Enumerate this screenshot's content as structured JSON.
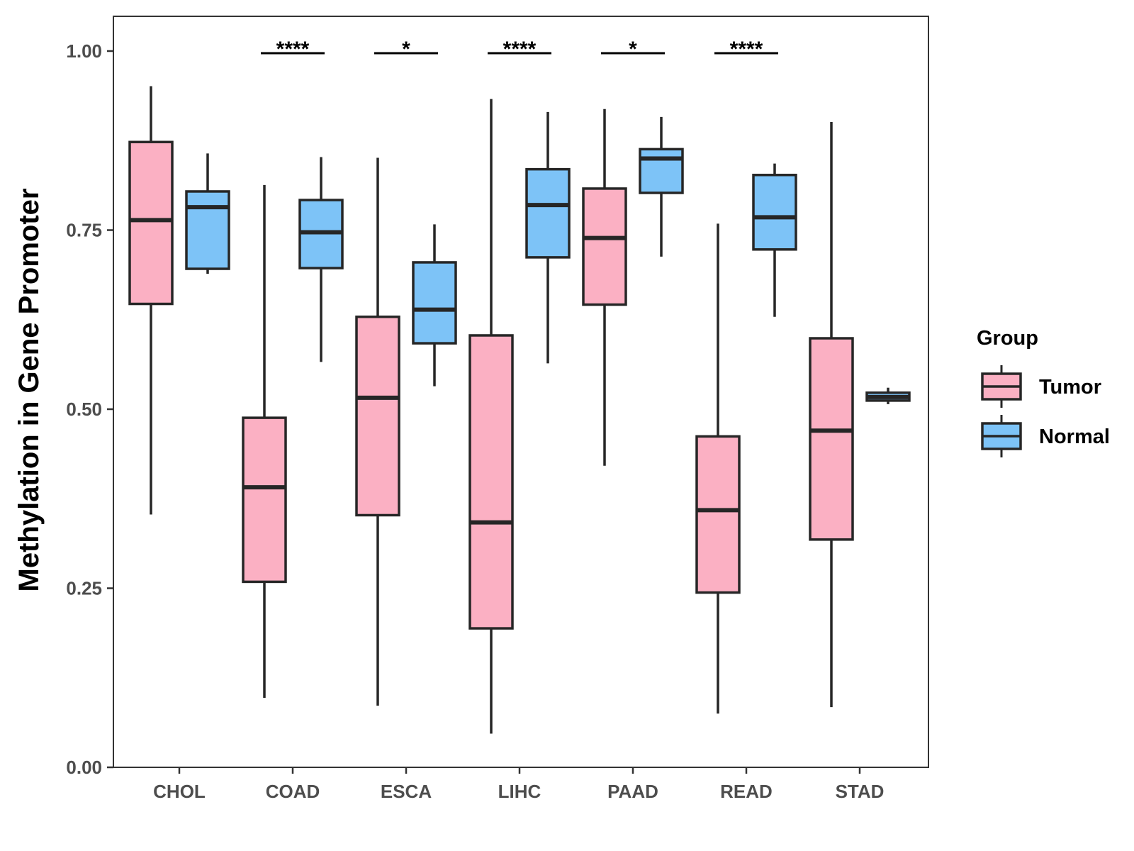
{
  "chart_data": {
    "type": "boxplot",
    "title": "",
    "xlabel": "",
    "ylabel": "Methylation in Gene Promoter",
    "ylim": [
      0,
      1.05
    ],
    "y_ticks": [
      0.0,
      0.25,
      0.5,
      0.75,
      1.0
    ],
    "y_tick_labels": [
      "0.00",
      "0.25",
      "0.50",
      "0.75",
      "1.00"
    ],
    "categories": [
      "CHOL",
      "COAD",
      "ESCA",
      "LIHC",
      "PAAD",
      "READ",
      "STAD"
    ],
    "legend": {
      "title": "Group",
      "position": "right",
      "entries": [
        {
          "name": "Tumor",
          "color": "#FBB0C3"
        },
        {
          "name": "Normal",
          "color": "#7DC3F7"
        }
      ]
    },
    "series": [
      {
        "name": "Tumor",
        "color": "#FBB0C3",
        "boxes": [
          {
            "category": "CHOL",
            "min": 0.353,
            "q1": 0.647,
            "median": 0.764,
            "q3": 0.873,
            "max": 0.951
          },
          {
            "category": "COAD",
            "min": 0.097,
            "q1": 0.259,
            "median": 0.391,
            "q3": 0.488,
            "max": 0.813
          },
          {
            "category": "ESCA",
            "min": 0.086,
            "q1": 0.352,
            "median": 0.516,
            "q3": 0.629,
            "max": 0.851
          },
          {
            "category": "LIHC",
            "min": 0.047,
            "q1": 0.194,
            "median": 0.342,
            "q3": 0.603,
            "max": 0.933
          },
          {
            "category": "PAAD",
            "min": 0.421,
            "q1": 0.646,
            "median": 0.739,
            "q3": 0.808,
            "max": 0.919
          },
          {
            "category": "READ",
            "min": 0.075,
            "q1": 0.244,
            "median": 0.359,
            "q3": 0.462,
            "max": 0.759
          },
          {
            "category": "STAD",
            "min": 0.084,
            "q1": 0.318,
            "median": 0.47,
            "q3": 0.599,
            "max": 0.901
          }
        ]
      },
      {
        "name": "Normal",
        "color": "#7DC3F7",
        "boxes": [
          {
            "category": "CHOL",
            "min": 0.689,
            "q1": 0.696,
            "median": 0.782,
            "q3": 0.804,
            "max": 0.857
          },
          {
            "category": "COAD",
            "min": 0.566,
            "q1": 0.697,
            "median": 0.747,
            "q3": 0.792,
            "max": 0.852
          },
          {
            "category": "ESCA",
            "min": 0.532,
            "q1": 0.592,
            "median": 0.639,
            "q3": 0.705,
            "max": 0.758
          },
          {
            "category": "LIHC",
            "min": 0.564,
            "q1": 0.712,
            "median": 0.785,
            "q3": 0.835,
            "max": 0.915
          },
          {
            "category": "PAAD",
            "min": 0.713,
            "q1": 0.802,
            "median": 0.85,
            "q3": 0.863,
            "max": 0.908
          },
          {
            "category": "READ",
            "min": 0.629,
            "q1": 0.723,
            "median": 0.768,
            "q3": 0.827,
            "max": 0.843
          },
          {
            "category": "STAD",
            "min": 0.507,
            "q1": 0.512,
            "median": 0.517,
            "q3": 0.523,
            "max": 0.53
          }
        ]
      }
    ],
    "significance": [
      {
        "category": "COAD",
        "label": "****"
      },
      {
        "category": "ESCA",
        "label": "*"
      },
      {
        "category": "LIHC",
        "label": "****"
      },
      {
        "category": "PAAD",
        "label": "*"
      },
      {
        "category": "READ",
        "label": "****"
      }
    ],
    "significance_y": 0.997,
    "grid": false
  }
}
